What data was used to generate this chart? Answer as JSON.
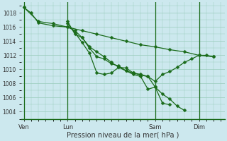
{
  "background_color": "#cce8ee",
  "grid_color": "#99ccbb",
  "line_color": "#1a6b1a",
  "xlabel": "Pression niveau de la mer( hPa )",
  "ylim": [
    1003.0,
    1019.5
  ],
  "yticks": [
    1004,
    1006,
    1008,
    1010,
    1012,
    1014,
    1016,
    1018
  ],
  "xtick_labels": [
    "Ven",
    "Lun",
    "Sam",
    "Dim"
  ],
  "xtick_positions": [
    0,
    6,
    18,
    24
  ],
  "xlim": [
    -0.3,
    27.5
  ],
  "vlines": [
    0,
    6,
    18,
    24
  ],
  "series1": {
    "x": [
      0,
      1,
      2,
      4,
      6,
      8,
      10,
      12,
      14,
      16,
      18,
      20,
      22,
      24,
      26
    ],
    "y": [
      1018.8,
      1018.0,
      1016.6,
      1016.2,
      1016.0,
      1015.5,
      1015.0,
      1014.5,
      1014.0,
      1013.5,
      1013.2,
      1012.8,
      1012.5,
      1012.0,
      1011.8
    ]
  },
  "series2": {
    "x": [
      0,
      2,
      4,
      6,
      7,
      8,
      9,
      10,
      11,
      12,
      13,
      14,
      15,
      16,
      17,
      18,
      19,
      20,
      21,
      22,
      23,
      24,
      25,
      26
    ],
    "y": [
      1018.8,
      1016.8,
      1016.5,
      1016.0,
      1015.5,
      1014.5,
      1013.2,
      1012.5,
      1011.8,
      1011.0,
      1010.3,
      1009.8,
      1009.5,
      1009.2,
      1009.0,
      1008.3,
      1009.3,
      1009.7,
      1010.3,
      1011.0,
      1011.5,
      1012.0,
      1012.0,
      1011.8
    ]
  },
  "series3": {
    "x": [
      6,
      7,
      8,
      9,
      10,
      11,
      12,
      13,
      14,
      15,
      16,
      17,
      18,
      19,
      20
    ],
    "y": [
      1016.5,
      1015.2,
      1013.8,
      1012.3,
      1009.5,
      1009.3,
      1009.5,
      1010.3,
      1010.2,
      1009.5,
      1009.3,
      1009.0,
      1007.5,
      1005.2,
      1005.0
    ]
  },
  "series4": {
    "x": [
      6,
      7,
      8,
      9,
      10,
      11,
      12,
      13,
      14,
      15,
      16,
      17,
      18,
      19,
      20,
      21,
      22
    ],
    "y": [
      1016.8,
      1015.0,
      1014.5,
      1013.0,
      1011.8,
      1011.5,
      1010.8,
      1010.5,
      1009.8,
      1009.3,
      1009.0,
      1007.2,
      1007.5,
      1006.5,
      1005.8,
      1004.8,
      1004.2
    ]
  }
}
